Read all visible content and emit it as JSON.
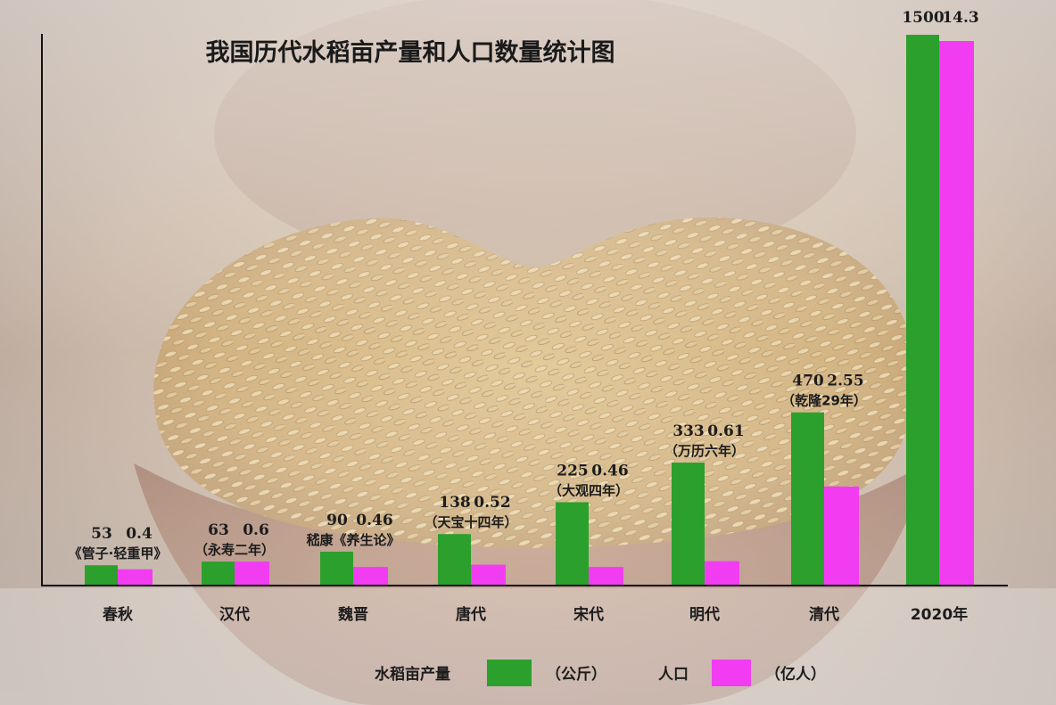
{
  "chart_data": {
    "type": "bar",
    "title": "我国历代水稻亩产量和人口数量统计图",
    "categories": [
      "春秋",
      "汉代",
      "魏晋",
      "唐代",
      "宋代",
      "明代",
      "清代",
      "2020年"
    ],
    "notes": [
      "《管子·轻重甲》",
      "（永寿二年）",
      "嵇康《养生论》",
      "（天宝十四年）",
      "（大观四年）",
      "（万历六年）",
      "（乾隆29年）",
      ""
    ],
    "series": [
      {
        "name": "水稻亩产量",
        "unit": "（公斤）",
        "color": "#2ca02c",
        "values": [
          53,
          63,
          90,
          138,
          225,
          333,
          470,
          1500
        ],
        "labels": [
          "53",
          "63",
          "90",
          "138",
          "225",
          "333",
          "470",
          "1500"
        ]
      },
      {
        "name": "人口",
        "unit": "（亿人）",
        "color": "#f23cf2",
        "values": [
          0.4,
          0.6,
          0.46,
          0.52,
          0.46,
          0.61,
          2.55,
          14.3
        ],
        "labels": [
          "0.4",
          "0.6",
          "0.46",
          "0.52",
          "0.46",
          "0.61",
          "2.55",
          "14.3"
        ]
      }
    ],
    "axes": {
      "y_axis_visible": true,
      "y_tick_labels": false,
      "grid": false
    },
    "legend_position": "bottom-center"
  }
}
